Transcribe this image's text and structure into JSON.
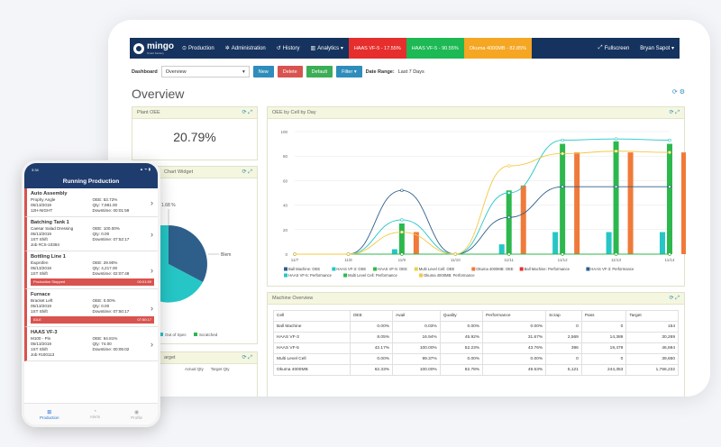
{
  "nav": {
    "logo": "mingo",
    "logo_sub": "Smart Factory",
    "items": [
      "Production",
      "Administration",
      "History",
      "Analytics ▾"
    ],
    "pills": [
      {
        "label": "HAAS VF-5 - 17.55%",
        "color": "#e62e2d"
      },
      {
        "label": "HAAS VF-5 - 90.55%",
        "color": "#1db954"
      },
      {
        "label": "Okuma 4000MB - 82.85%",
        "color": "#f5a623"
      }
    ],
    "fullscreen": "Fullscreen",
    "user": "Bryan Sapot ▾"
  },
  "toolbar": {
    "dashboard_label": "Dashboard",
    "dashboard_value": "Overview",
    "buttons": [
      {
        "label": "New",
        "color": "#2f8dbb"
      },
      {
        "label": "Delete",
        "color": "#d9534f"
      },
      {
        "label": "Default",
        "color": "#3cae56"
      },
      {
        "label": "Filter ▾",
        "color": "#2f8dbb"
      }
    ],
    "date_range_label": "Date Range:",
    "date_range_value": "Last 7 Days"
  },
  "page_title": "Overview",
  "plant_oee": {
    "title": "Plant OEE",
    "value": "20.79%"
  },
  "pie_widget": {
    "title": "Chart Widget",
    "labels": [
      "1.68 %",
      "Blem"
    ],
    "legend": [
      "emish",
      "Out of Spec",
      "Scratched"
    ],
    "legend_colors": [
      "#2e5f8a",
      "#26c6c6",
      "#2db84d"
    ]
  },
  "target_widget": {
    "title": "arget",
    "cols": [
      "Actual Qty",
      "Target Qty"
    ]
  },
  "oee_by_day": {
    "title": "OEE by Cell by Day"
  },
  "chart_data": {
    "type": "bar",
    "categories": [
      "11/7",
      "11/8",
      "11/9",
      "11/10",
      "11/11",
      "11/12",
      "11/13",
      "11/14"
    ],
    "ylim": [
      0,
      100
    ],
    "yticks": [
      0,
      20,
      40,
      60,
      80,
      100
    ],
    "series": [
      {
        "name": "Ball Machine: OEE",
        "kind": "bar",
        "color": "#2e5f8a",
        "values": [
          0,
          0,
          0,
          0,
          0,
          0,
          0,
          0
        ]
      },
      {
        "name": "HAAS VF-3: OEE",
        "kind": "bar",
        "color": "#26c6c6",
        "values": [
          0,
          0,
          4,
          0,
          8,
          18,
          18,
          18
        ]
      },
      {
        "name": "HAAS VF-5: OEE",
        "kind": "bar",
        "color": "#2db84d",
        "values": [
          0,
          0,
          25,
          0,
          52,
          90,
          92,
          90
        ]
      },
      {
        "name": "Multi Level Cell: OEE",
        "kind": "bar",
        "color": "#e8d24a",
        "values": [
          0,
          0,
          0,
          0,
          0,
          0,
          0,
          0
        ]
      },
      {
        "name": "Okuma 4000MB: OEE",
        "kind": "bar",
        "color": "#f07a3a",
        "values": [
          0,
          0,
          18,
          0,
          56,
          83,
          83,
          83
        ]
      },
      {
        "name": "Ball Machine: Performance",
        "kind": "line",
        "color": "#e62e2d",
        "values": [
          0,
          0,
          0,
          0,
          0,
          0,
          0,
          0
        ]
      },
      {
        "name": "HAAS VF-3: Performance",
        "kind": "line",
        "color": "#2e5f8a",
        "values": [
          0,
          0,
          52,
          0,
          30,
          55,
          55,
          55
        ]
      },
      {
        "name": "HAAS VF-5: Performance",
        "kind": "line",
        "color": "#26c6c6",
        "values": [
          0,
          0,
          28,
          0,
          50,
          93,
          94,
          93
        ]
      },
      {
        "name": "Multi Level Cell: Performance",
        "kind": "line",
        "color": "#2db84d",
        "values": [
          0,
          0,
          0,
          0,
          0,
          0,
          0,
          0
        ]
      },
      {
        "name": "Okuma 4000MB: Performance",
        "kind": "line",
        "color": "#f5c842",
        "values": [
          0,
          0,
          18,
          0,
          72,
          82,
          84,
          83
        ]
      }
    ]
  },
  "machine_overview": {
    "title": "Machine Overview",
    "columns": [
      "Cell",
      "OEE",
      "Avail",
      "Quality",
      "Performance",
      "Scrap",
      "Pass",
      "Target"
    ],
    "rows": [
      [
        "Ball Machine",
        "0.00%",
        "0.03%",
        "0.00%",
        "0.00%",
        "0",
        "0",
        "154"
      ],
      [
        "HAAS VF-3",
        "8.05%",
        "16.94%",
        "45.92%",
        "31.67%",
        "2,569",
        "14,389",
        "30,269"
      ],
      [
        "HAAS VF-5",
        "42.17%",
        "100.00%",
        "52.23%",
        "43.76%",
        "396",
        "19,479",
        "46,694"
      ],
      [
        "Multi Level Cell",
        "0.00%",
        "99.37%",
        "0.00%",
        "0.00%",
        "0",
        "0",
        "39,650"
      ],
      [
        "Okuma 4000MB",
        "62.33%",
        "100.00%",
        "82.78%",
        "49.63%",
        "5,121",
        "244,353",
        "1,766,232"
      ]
    ]
  },
  "mobile": {
    "time": "3:34",
    "signal": "▲ ᯤ ▮",
    "title": "Running Production",
    "items": [
      {
        "name": "Auto Assembly",
        "lines": [
          [
            "Prophy Angle",
            "OEE: 53.72%"
          ],
          [
            "05/13/2019",
            "Qty: 7,981.00"
          ],
          [
            "12H-NIGHT",
            "Downtime: 00:01:59"
          ]
        ],
        "status": "",
        "status_time": ""
      },
      {
        "name": "Batching Tank 1",
        "lines": [
          [
            "Caesar Salad Dressing",
            "OEE: 100.00%"
          ],
          [
            "05/13/2019",
            "Qty: 0.00"
          ],
          [
            "1ST Shift",
            "Downtime: 07:52:17"
          ],
          [
            "Job #CS-10384",
            ""
          ]
        ],
        "status": "",
        "status_time": ""
      },
      {
        "name": "Bottling Line 1",
        "lines": [
          [
            "Ibuprofen",
            "OEE: 29.90%"
          ],
          [
            "05/13/2019",
            "Qty: 4,217.00"
          ],
          [
            "1ST Shift",
            "Downtime: 02:07:48"
          ]
        ],
        "status": "Production Stopped",
        "status_time": "00:01:59"
      },
      {
        "name": "Furnace",
        "lines": [
          [
            "Bracket Left",
            "OEE: 0.00%"
          ],
          [
            "05/13/2019",
            "Qty: 0.00"
          ],
          [
            "1ST Shift",
            "Downtime: 07:50:17"
          ]
        ],
        "status": "IDLE",
        "status_time": "07:50:17"
      },
      {
        "name": "HAAS VF-3",
        "lines": [
          [
            "M100 - Pin",
            "OEE: 64.81%"
          ],
          [
            "05/13/2019",
            "Qty: 74.00"
          ],
          [
            "1ST Shift",
            "Downtime: 00:05:02"
          ],
          [
            "Job #100113",
            ""
          ]
        ],
        "status": "",
        "status_time": ""
      }
    ],
    "tabs": [
      "Production",
      "Alerts",
      "Profile"
    ]
  }
}
